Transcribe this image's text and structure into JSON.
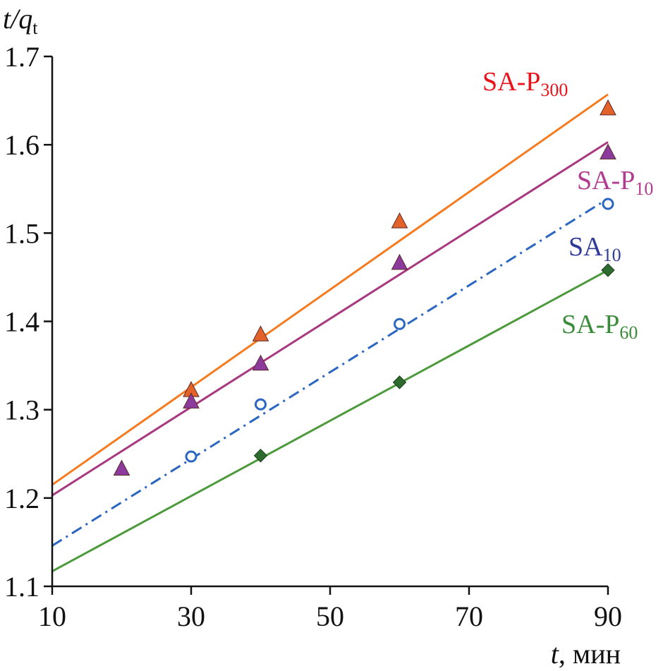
{
  "chart_data": {
    "type": "scatter",
    "title": "",
    "ylabel": {
      "main": "t/q",
      "sub": "t"
    },
    "xlabel": {
      "main": "t",
      "rest": ", мин"
    },
    "xlim": [
      10,
      90
    ],
    "ylim": [
      1.1,
      1.7
    ],
    "x_ticks": [
      "10",
      "30",
      "50",
      "70",
      "90"
    ],
    "y_ticks": [
      "1.1",
      "1.2",
      "1.3",
      "1.4",
      "1.5",
      "1.6",
      "1.7"
    ],
    "series": [
      {
        "id": "sa-p300",
        "label_main": "SA-P",
        "label_sub": "300",
        "color": "#e8141c",
        "line_color": "#f47b20",
        "marker": "triangle",
        "marker_color": "#e2622a",
        "line_style": "solid",
        "points": [
          [
            30,
            1.322
          ],
          [
            40,
            1.385
          ],
          [
            60,
            1.513
          ],
          [
            90,
            1.641
          ]
        ],
        "fit": [
          [
            10,
            1.215
          ],
          [
            90,
            1.657
          ]
        ]
      },
      {
        "id": "sa-p10",
        "label_main": "SA-P",
        "label_sub": "10",
        "color": "#b13b8f",
        "line_color": "#a8387f",
        "marker": "triangle",
        "marker_color": "#8c3a9c",
        "line_style": "solid",
        "points": [
          [
            20,
            1.233
          ],
          [
            30,
            1.309
          ],
          [
            40,
            1.352
          ],
          [
            60,
            1.466
          ],
          [
            90,
            1.591
          ]
        ],
        "fit": [
          [
            10,
            1.203
          ],
          [
            90,
            1.603
          ]
        ]
      },
      {
        "id": "sa10",
        "label_main": "SA",
        "label_sub": "10",
        "color": "#2f3b96",
        "line_color": "#2b66c1",
        "marker": "circle",
        "marker_color": "#2b66c1",
        "line_style": "dashdot",
        "points": [
          [
            30,
            1.247
          ],
          [
            40,
            1.306
          ],
          [
            60,
            1.397
          ],
          [
            90,
            1.533
          ]
        ],
        "fit": [
          [
            10,
            1.146
          ],
          [
            90,
            1.539
          ]
        ]
      },
      {
        "id": "sa-p60",
        "label_main": "SA-P",
        "label_sub": "60",
        "color": "#3a8b3a",
        "line_color": "#4c9a3c",
        "marker": "diamond",
        "marker_color": "#2e6b2e",
        "line_style": "solid",
        "points": [
          [
            40,
            1.248
          ],
          [
            60,
            1.331
          ],
          [
            90,
            1.458
          ]
        ],
        "fit": [
          [
            10,
            1.117
          ],
          [
            90,
            1.458
          ]
        ]
      }
    ]
  }
}
